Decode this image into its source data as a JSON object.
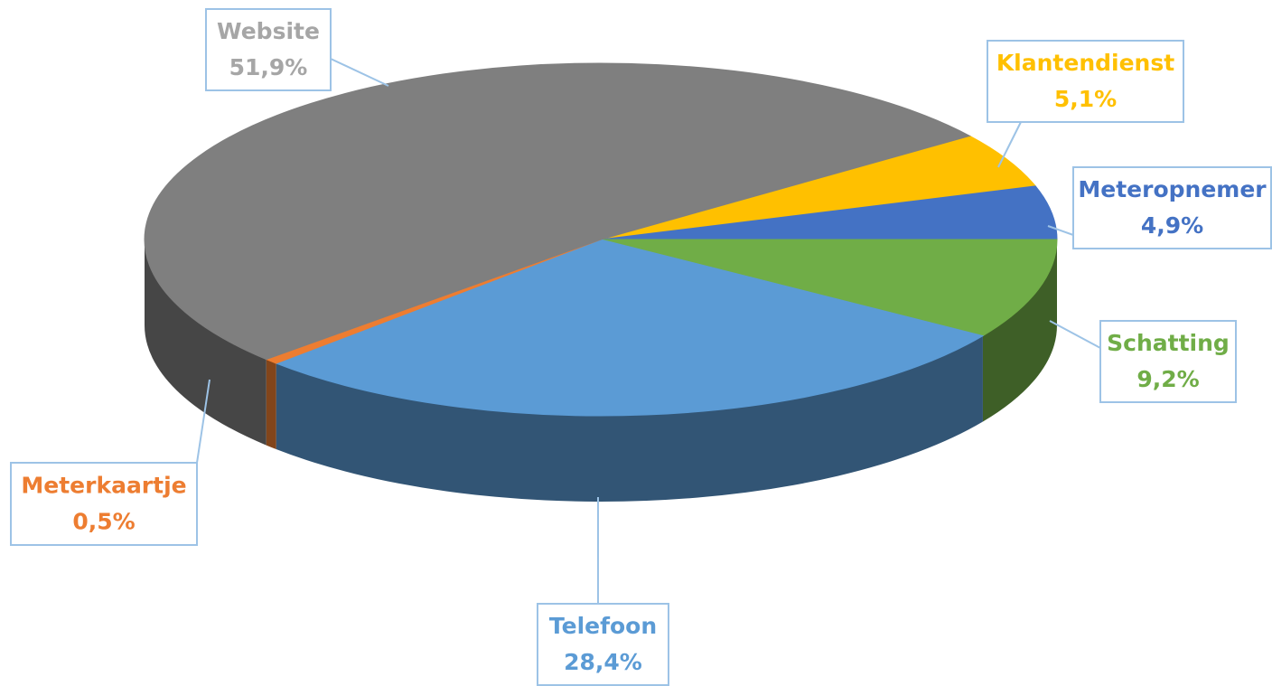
{
  "chart_data": {
    "type": "pie",
    "categories": [
      "Klantendienst",
      "Meteropnemer",
      "Schatting",
      "Telefoon",
      "Meterkaartje",
      "Website"
    ],
    "values": [
      5.1,
      4.9,
      9.2,
      28.4,
      0.5,
      51.9
    ],
    "value_labels": [
      "5,1%",
      "4,9%",
      "9,2%",
      "28,4%",
      "0,5%",
      "51,9%"
    ],
    "colors": [
      "#ffc000",
      "#4472c4",
      "#70ad47",
      "#5b9bd5",
      "#ed7d31",
      "#7f7f7f"
    ],
    "label_colors": [
      "#ffc000",
      "#4472c4",
      "#70ad47",
      "#5b9bd5",
      "#ed7d31",
      "#a6a6a6"
    ]
  }
}
